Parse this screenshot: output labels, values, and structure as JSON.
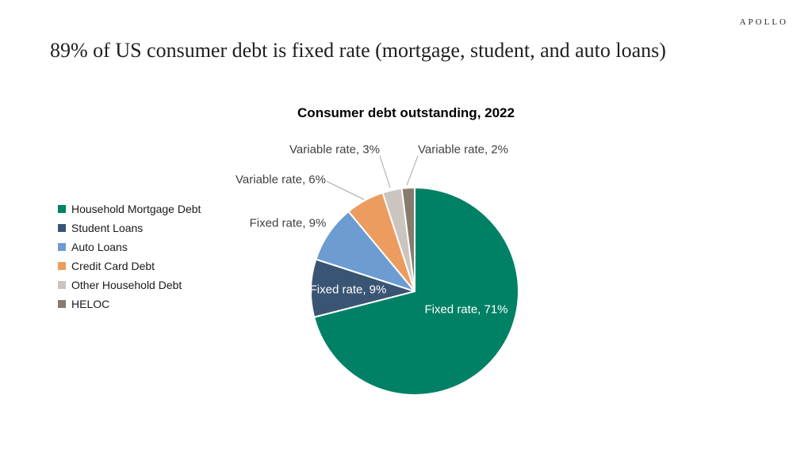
{
  "header": {
    "logo": "APOLLO",
    "title": "89% of US consumer debt is fixed rate (mortgage, student, and auto loans)"
  },
  "chart_data": {
    "type": "pie",
    "title": "Consumer debt outstanding, 2022",
    "start_angle_deg": 0,
    "direction": "clockwise",
    "legend_position": "left",
    "units": "percent of consumer debt outstanding",
    "slices": [
      {
        "name": "Household Mortgage Debt",
        "rate_type": "Fixed rate",
        "value": 71,
        "label": "Fixed rate, 71%",
        "color": "#008165",
        "label_placement": "inside"
      },
      {
        "name": "Student Loans",
        "rate_type": "Fixed rate",
        "value": 9,
        "label": "Fixed rate, 9%",
        "color": "#3A5574",
        "label_placement": "inside"
      },
      {
        "name": "Auto Loans",
        "rate_type": "Fixed rate",
        "value": 9,
        "label": "Fixed rate, 9%",
        "color": "#6C9CD2",
        "label_placement": "outside"
      },
      {
        "name": "Credit Card Debt",
        "rate_type": "Variable rate",
        "value": 6,
        "label": "Variable rate, 6%",
        "color": "#EC9C5E",
        "label_placement": "outside"
      },
      {
        "name": "Other Household Debt",
        "rate_type": "Variable rate",
        "value": 3,
        "label": "Variable rate, 3%",
        "color": "#CAC5BF",
        "label_placement": "outside"
      },
      {
        "name": "HELOC",
        "rate_type": "Variable rate",
        "value": 2,
        "label": "Variable rate, 2%",
        "color": "#867C6E",
        "label_placement": "outside"
      }
    ]
  }
}
